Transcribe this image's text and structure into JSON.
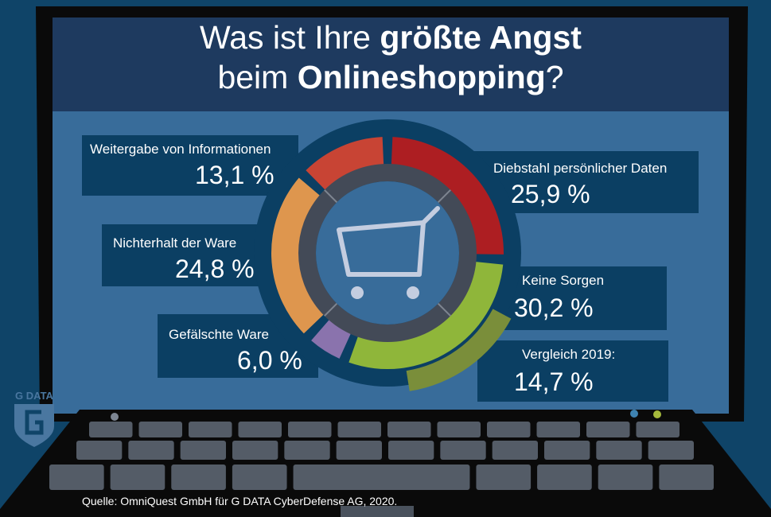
{
  "chart_data": {
    "type": "pie",
    "title": "Was ist Ihre größte Angst beim Onlineshopping?",
    "title_parts": {
      "a": "Was ist Ihre ",
      "b": "größte Angst",
      "c": "beim ",
      "d": "Onlineshopping",
      "e": "?"
    },
    "unit": "%",
    "slices": [
      {
        "label": "Diebstahl persönlicher Daten",
        "value": 25.9,
        "display": "25,9 %",
        "color": "#ad1e22"
      },
      {
        "label": "Keine Sorgen",
        "value": 30.2,
        "display": "30,2 %",
        "color": "#8fb63a"
      },
      {
        "label": "Gefälschte Ware",
        "value": 6.0,
        "display": "6,0 %",
        "color": "#8a73ad"
      },
      {
        "label": "Nichterhalt der Ware",
        "value": 24.8,
        "display": "24,8 %",
        "color": "#de964e"
      },
      {
        "label": "Weitergabe von Informationen",
        "value": 13.1,
        "display": "13,1 %",
        "color": "#c84434"
      }
    ],
    "comparison": {
      "label": "Vergleich 2019:",
      "value": 14.7,
      "display": "14,7 %",
      "color": "#7a8e3a"
    }
  },
  "source": "Quelle: OmniQuest GmbH für G DATA CyberDefense AG, 2020.",
  "logo": {
    "text": "G DATA",
    "icon": "g-data-shield-logo"
  },
  "center_icon": "shopping-cart-icon"
}
